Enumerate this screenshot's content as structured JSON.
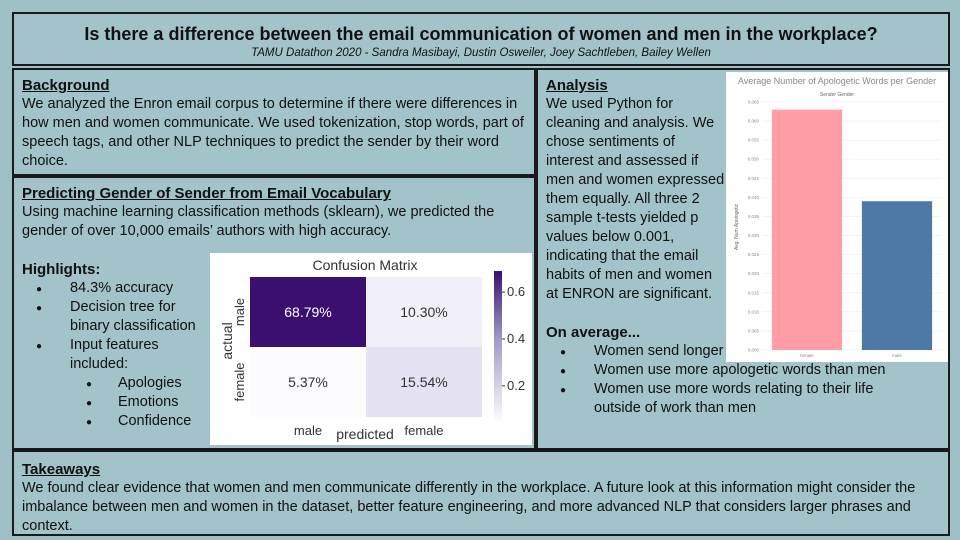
{
  "title": "Is there a difference between the email communication of women and men in the workplace?",
  "subtitle": "TAMU Datathon 2020 - Sandra Masibayi, Dustin Osweiler, Joey Sachtleben, Bailey Wellen",
  "background": {
    "heading": "Background",
    "text": "We analyzed the Enron email corpus to determine if there were differences in how men and women communicate. We used tokenization, stop words, part of speech tags, and other NLP techniques to predict the sender by their word choice."
  },
  "prediction": {
    "heading": "Predicting Gender of Sender from Email Vocabulary",
    "text": "Using machine learning classification methods (sklearn), we predicted the gender of over 10,000 emails’ authors with high accuracy.",
    "highlights_label": "Highlights:",
    "highlights": [
      "84.3% accuracy",
      "Decision tree for binary classification",
      "Input features included:"
    ],
    "features": [
      "Apologies",
      "Emotions",
      "Confidence"
    ]
  },
  "analysis": {
    "heading": "Analysis",
    "text": "We used Python for cleaning and analysis. We chose sentiments of interest and assessed if men and women expressed them equally. All three 2 sample t-tests yielded p values below 0.001, indicating that the email habits of men and women at ENRON are significant.",
    "on_average": "On average...",
    "findings": [
      "Women send longer emails than men",
      "Women use more apologetic words than men",
      "Women use more words relating to their life outside of work than men"
    ]
  },
  "takeaways": {
    "heading": "Takeaways",
    "text": "We found clear evidence that women and men communicate differently in the workplace. A future look at this information might consider the imbalance between men and women in the dataset, better feature engineering, and more advanced NLP that considers larger phrases and context."
  },
  "chart_data": [
    {
      "type": "heatmap",
      "title": "Confusion Matrix",
      "xlabel": "predicted",
      "ylabel": "actual",
      "x_categories": [
        "male",
        "female"
      ],
      "y_categories": [
        "male",
        "female"
      ],
      "cells": [
        [
          0.6879,
          0.103
        ],
        [
          0.0537,
          0.1554
        ]
      ],
      "cell_labels": [
        [
          "68.79%",
          "10.30%"
        ],
        [
          "5.37%",
          "15.54%"
        ]
      ],
      "colorbar_ticks": [
        "0.6",
        "0.4",
        "0.2"
      ],
      "colors": {
        "high": "#3b0f70",
        "low": "#fcfbfd"
      }
    },
    {
      "type": "bar",
      "title": "Average Number of Apologetic Words per Gender",
      "subtitle": "Sender Gender",
      "ylabel": "Avg. Num Apologetic",
      "categories": [
        "female",
        "male"
      ],
      "values": [
        0.063,
        0.039
      ],
      "ylim": [
        0,
        0.065
      ],
      "yticks": [
        "0.000",
        "0.005",
        "0.010",
        "0.015",
        "0.020",
        "0.025",
        "0.030",
        "0.035",
        "0.040",
        "0.045",
        "0.050",
        "0.055",
        "0.060",
        "0.065"
      ],
      "colors": [
        "#ff9da7",
        "#4e79a7"
      ]
    }
  ]
}
